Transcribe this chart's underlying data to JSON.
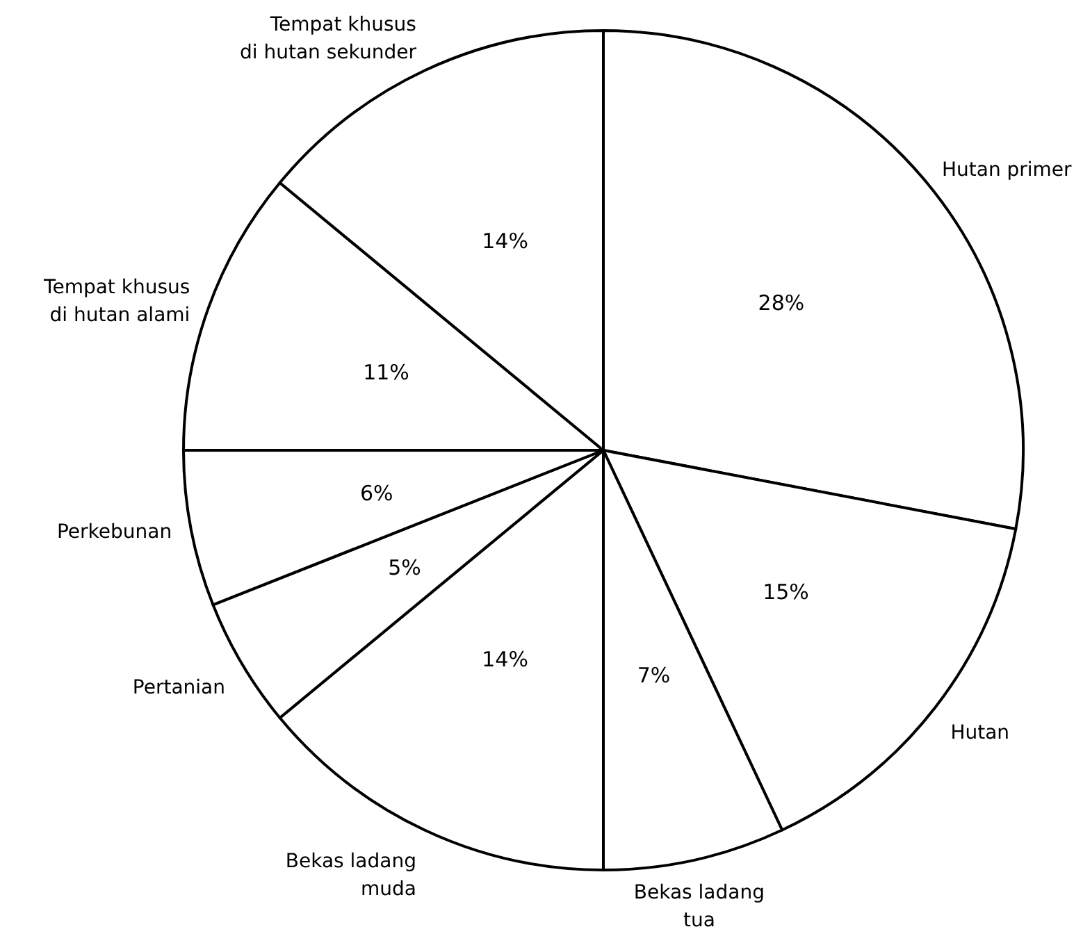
{
  "chart_data": {
    "type": "pie",
    "categories": [
      "Hutan primer",
      "Hutan",
      "Bekas ladang\ntua",
      "Bekas ladang\nmuda",
      "Pertanian",
      "Perkebunan",
      "Tempat khusus\ndi hutan alami",
      "Tempat khusus\ndi hutan sekunder"
    ],
    "values": [
      28,
      15,
      7,
      14,
      5,
      6,
      11,
      14
    ],
    "value_labels": [
      "28%",
      "15%",
      "7%",
      "14%",
      "5%",
      "6%",
      "11%",
      "14%"
    ],
    "colors": [
      "#ffffff",
      "#ffffff",
      "#ffffff",
      "#ffffff",
      "#ffffff",
      "#ffffff",
      "#ffffff",
      "#ffffff"
    ]
  }
}
